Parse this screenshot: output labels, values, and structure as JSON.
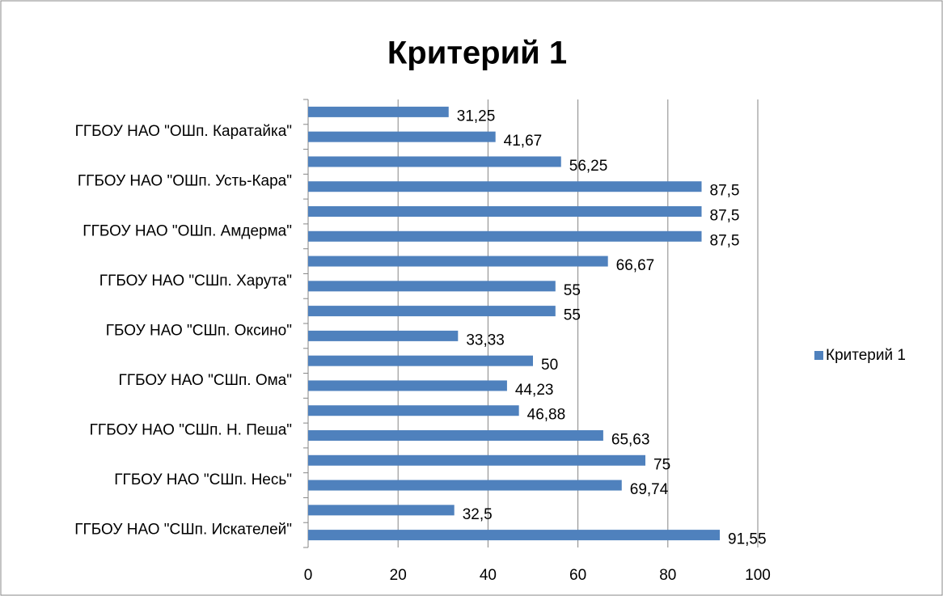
{
  "chart_data": {
    "type": "hbar",
    "title": "Критерий 1",
    "categories": [
      "ГГБОУ НАО \"СШп. Искателей\"",
      null,
      "ГГБОУ НАО \"СШп. Несь\"",
      null,
      "ГГБОУ НАО \"СШп. Н. Пеша\"",
      null,
      "ГГБОУ НАО \"СШп. Ома\"",
      null,
      "ГБОУ НАО \"СШп. Оксино\"",
      null,
      "ГГБОУ НАО \"СШп. Харута\"",
      null,
      "ГГБОУ НАО \"ОШп. Амдерма\"",
      null,
      "ГГБОУ НАО \"ОШп. Усть-Кара\"",
      null,
      "ГГБОУ НАО \"ОШп. Каратайка\"",
      null
    ],
    "series": [
      {
        "name": "Критерий 1",
        "color": "#4f81bd",
        "values": [
          91.55,
          32.5,
          69.74,
          75,
          65.63,
          46.88,
          44.23,
          50,
          33.33,
          55,
          55,
          66.67,
          87.5,
          87.5,
          87.5,
          56.25,
          41.67,
          31.25
        ],
        "value_labels": [
          "91,55",
          "32,5",
          "69,74",
          "75",
          "65,63",
          "46,88",
          "44,23",
          "50",
          "33,33",
          "55",
          "55",
          "66,67",
          "87,5",
          "87,5",
          "87,5",
          "56,25",
          "41,67",
          "31,25"
        ]
      }
    ],
    "xlim": [
      0,
      100
    ],
    "xticks": [
      0,
      20,
      40,
      60,
      80,
      100
    ],
    "grid": true,
    "legend": "right"
  }
}
